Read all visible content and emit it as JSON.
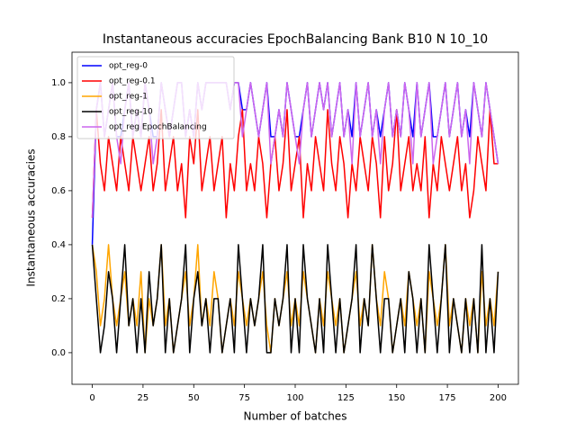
{
  "chart_data": {
    "type": "line",
    "title": "Instantaneous accuracies EpochBalancing Bank B10 N 10_10",
    "x_label": "Number of batches",
    "y_label": "Instantaneous accuracies",
    "xlim": [
      -10,
      210
    ],
    "ylim": [
      -0.117,
      1.113
    ],
    "xticks": [
      0,
      25,
      50,
      75,
      100,
      125,
      150,
      175,
      200
    ],
    "yticks": [
      {
        "value": 0,
        "label": "0.0"
      },
      0.2,
      0.4,
      0.6,
      0.8,
      {
        "value": 1,
        "label": "1.0"
      }
    ],
    "legend": "upper left",
    "x": [
      0,
      2,
      4,
      6,
      8,
      10,
      12,
      14,
      16,
      18,
      20,
      22,
      24,
      26,
      28,
      30,
      32,
      34,
      36,
      38,
      40,
      42,
      44,
      46,
      48,
      50,
      52,
      54,
      56,
      58,
      60,
      62,
      64,
      66,
      68,
      70,
      72,
      74,
      76,
      78,
      80,
      82,
      84,
      86,
      88,
      90,
      92,
      94,
      96,
      98,
      100,
      102,
      104,
      106,
      108,
      110,
      112,
      114,
      116,
      118,
      120,
      122,
      124,
      126,
      128,
      130,
      132,
      134,
      136,
      138,
      140,
      142,
      144,
      146,
      148,
      150,
      152,
      154,
      156,
      158,
      160,
      162,
      164,
      166,
      168,
      170,
      172,
      174,
      176,
      178,
      180,
      182,
      184,
      186,
      188,
      190,
      192,
      194,
      196,
      198,
      200
    ],
    "series": [
      {
        "name": "opt_reg-0",
        "color": "#0000ff",
        "values": [
          0.4,
          0.9,
          1.0,
          0.8,
          0.9,
          1.0,
          0.8,
          0.8,
          0.9,
          1.0,
          0.8,
          0.9,
          0.8,
          1.0,
          0.9,
          0.8,
          0.8,
          1.0,
          0.9,
          0.8,
          0.9,
          1.0,
          1.0,
          0.8,
          0.9,
          0.8,
          1.0,
          0.9,
          1.0,
          1.0,
          1.0,
          1.0,
          1.0,
          1.0,
          0.9,
          1.0,
          1.0,
          0.9,
          0.9,
          1.0,
          0.9,
          0.8,
          0.9,
          1.0,
          0.8,
          0.8,
          0.9,
          0.8,
          1.0,
          0.9,
          0.8,
          0.8,
          0.9,
          1.0,
          0.8,
          0.9,
          1.0,
          0.9,
          1.0,
          0.8,
          0.9,
          1.0,
          0.8,
          0.9,
          0.8,
          1.0,
          0.8,
          0.9,
          1.0,
          0.8,
          0.9,
          0.8,
          0.9,
          1.0,
          0.8,
          0.9,
          0.8,
          1.0,
          0.9,
          0.8,
          1.0,
          0.8,
          0.9,
          1.0,
          0.8,
          0.8,
          0.9,
          1.0,
          0.8,
          0.9,
          1.0,
          0.8,
          0.9,
          0.8,
          1.0,
          0.9,
          0.8,
          1.0,
          0.9,
          0.8,
          0.7
        ]
      },
      {
        "name": "opt_reg-0.1",
        "color": "#ff0000",
        "values": [
          0.5,
          0.9,
          0.7,
          0.6,
          0.8,
          0.7,
          0.6,
          0.8,
          0.7,
          0.6,
          0.8,
          0.7,
          0.6,
          0.7,
          0.8,
          0.6,
          0.7,
          0.9,
          0.6,
          0.7,
          0.8,
          0.6,
          0.7,
          0.5,
          0.8,
          0.7,
          0.9,
          0.6,
          0.7,
          0.8,
          0.6,
          0.7,
          0.8,
          0.5,
          0.7,
          0.6,
          0.8,
          0.9,
          0.6,
          0.7,
          0.6,
          0.8,
          0.7,
          0.5,
          0.7,
          0.8,
          0.6,
          0.7,
          0.9,
          0.6,
          0.7,
          0.8,
          0.5,
          0.7,
          0.6,
          0.8,
          0.7,
          0.6,
          0.9,
          0.7,
          0.6,
          0.8,
          0.7,
          0.5,
          0.7,
          0.6,
          0.8,
          0.7,
          0.6,
          0.8,
          0.7,
          0.5,
          0.8,
          0.6,
          0.7,
          0.9,
          0.6,
          0.7,
          0.8,
          0.6,
          0.7,
          0.6,
          0.8,
          0.5,
          0.7,
          0.6,
          0.8,
          0.7,
          0.6,
          0.7,
          0.8,
          0.6,
          0.7,
          0.5,
          0.6,
          0.8,
          0.7,
          0.6,
          0.9,
          0.7,
          0.7
        ]
      },
      {
        "name": "opt_reg-1",
        "color": "#ffa500",
        "values": [
          0.4,
          0.3,
          0.1,
          0.2,
          0.4,
          0.2,
          0.1,
          0.2,
          0.3,
          0.1,
          0.2,
          0.1,
          0.3,
          0.0,
          0.2,
          0.1,
          0.2,
          0.4,
          0.1,
          0.2,
          0.0,
          0.1,
          0.2,
          0.3,
          0.1,
          0.2,
          0.4,
          0.1,
          0.2,
          0.1,
          0.3,
          0.2,
          0.0,
          0.1,
          0.2,
          0.1,
          0.3,
          0.2,
          0.1,
          0.2,
          0.1,
          0.2,
          0.3,
          0.1,
          0.0,
          0.2,
          0.1,
          0.2,
          0.3,
          0.1,
          0.2,
          0.1,
          0.3,
          0.2,
          0.1,
          0.0,
          0.2,
          0.1,
          0.3,
          0.2,
          0.1,
          0.2,
          0.0,
          0.1,
          0.2,
          0.3,
          0.1,
          0.2,
          0.1,
          0.4,
          0.2,
          0.1,
          0.3,
          0.2,
          0.0,
          0.1,
          0.2,
          0.1,
          0.3,
          0.2,
          0.1,
          0.2,
          0.0,
          0.3,
          0.2,
          0.1,
          0.2,
          0.4,
          0.1,
          0.2,
          0.1,
          0.0,
          0.2,
          0.1,
          0.2,
          0.0,
          0.3,
          0.1,
          0.2,
          0.1,
          0.3
        ]
      },
      {
        "name": "opt_reg-10",
        "color": "#000000",
        "values": [
          0.4,
          0.2,
          0.0,
          0.1,
          0.3,
          0.2,
          0.0,
          0.2,
          0.4,
          0.1,
          0.2,
          0.0,
          0.2,
          0.0,
          0.3,
          0.1,
          0.2,
          0.4,
          0.0,
          0.2,
          0.0,
          0.1,
          0.2,
          0.4,
          0.0,
          0.2,
          0.3,
          0.1,
          0.2,
          0.0,
          0.2,
          0.2,
          0.0,
          0.1,
          0.2,
          0.0,
          0.4,
          0.2,
          0.0,
          0.2,
          0.1,
          0.2,
          0.4,
          0.0,
          0.0,
          0.2,
          0.1,
          0.2,
          0.4,
          0.0,
          0.2,
          0.0,
          0.4,
          0.2,
          0.1,
          0.0,
          0.2,
          0.0,
          0.4,
          0.2,
          0.0,
          0.2,
          0.0,
          0.1,
          0.2,
          0.4,
          0.0,
          0.2,
          0.1,
          0.4,
          0.2,
          0.0,
          0.2,
          0.2,
          0.0,
          0.1,
          0.2,
          0.0,
          0.3,
          0.2,
          0.0,
          0.2,
          0.0,
          0.4,
          0.2,
          0.0,
          0.2,
          0.4,
          0.0,
          0.2,
          0.1,
          0.0,
          0.2,
          0.0,
          0.2,
          0.0,
          0.4,
          0.0,
          0.2,
          0.0,
          0.3
        ]
      },
      {
        "name": "opt_reg EpochBalancing",
        "color": "#cc66ee",
        "values": [
          0.5,
          0.9,
          1.0,
          0.8,
          0.9,
          1.0,
          0.8,
          0.7,
          0.9,
          1.0,
          0.8,
          0.9,
          0.8,
          1.0,
          0.9,
          0.7,
          0.8,
          1.0,
          0.9,
          0.8,
          0.9,
          1.0,
          1.0,
          0.8,
          0.9,
          0.8,
          1.0,
          0.9,
          1.0,
          1.0,
          1.0,
          1.0,
          1.0,
          1.0,
          0.9,
          1.0,
          1.0,
          0.8,
          0.9,
          1.0,
          0.9,
          0.8,
          0.9,
          1.0,
          0.7,
          0.8,
          0.9,
          0.8,
          1.0,
          0.9,
          0.8,
          0.7,
          0.9,
          1.0,
          0.8,
          0.9,
          1.0,
          0.9,
          1.0,
          0.8,
          0.9,
          1.0,
          0.8,
          0.9,
          0.7,
          1.0,
          0.8,
          0.9,
          1.0,
          0.8,
          0.9,
          0.7,
          0.9,
          1.0,
          0.8,
          0.9,
          0.8,
          1.0,
          0.9,
          0.7,
          1.0,
          0.8,
          0.9,
          1.0,
          0.7,
          0.8,
          0.9,
          1.0,
          0.8,
          0.9,
          1.0,
          0.8,
          0.9,
          0.7,
          1.0,
          0.9,
          0.8,
          1.0,
          0.9,
          0.8,
          0.7
        ]
      }
    ]
  }
}
